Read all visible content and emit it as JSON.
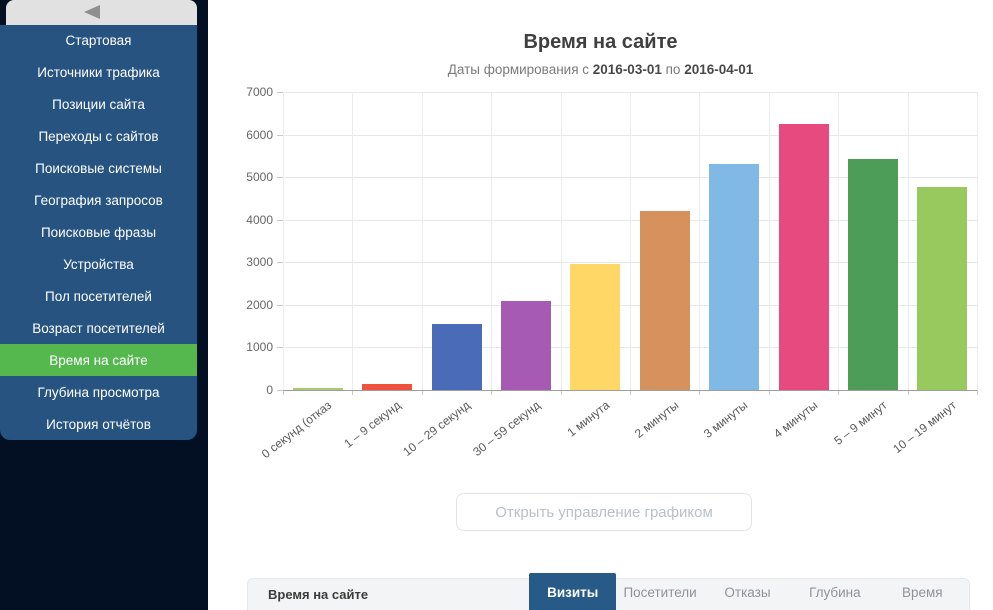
{
  "sidebar": {
    "collapse_icon": "left-triangle",
    "items": [
      {
        "label": "Стартовая",
        "active": false
      },
      {
        "label": "Источники трафика",
        "active": false
      },
      {
        "label": "Позиции сайта",
        "active": false
      },
      {
        "label": "Переходы с сайтов",
        "active": false
      },
      {
        "label": "Поисковые системы",
        "active": false
      },
      {
        "label": "География запросов",
        "active": false
      },
      {
        "label": "Поисковые фразы",
        "active": false
      },
      {
        "label": "Устройства",
        "active": false
      },
      {
        "label": "Пол посетителей",
        "active": false
      },
      {
        "label": "Возраст посетителей",
        "active": false
      },
      {
        "label": "Время на сайте",
        "active": true
      },
      {
        "label": "Глубина просмотра",
        "active": false
      },
      {
        "label": "История отчётов",
        "active": false
      }
    ],
    "colors": {
      "rail": "#031024",
      "panel": "#265380",
      "active_item": "#55b84f",
      "text": "#ffffff",
      "header": "#e1e1e1"
    }
  },
  "header": {
    "title": "Время на сайте",
    "subtitle_prefix": "Даты формирования с",
    "date_from": "2016-03-01",
    "subtitle_joiner": "по",
    "date_to": "2016-04-01"
  },
  "chart_data": {
    "type": "bar",
    "title": "Время на сайте",
    "categories": [
      "0 секунд (отказ",
      "1 – 9 секунд",
      "10 – 29 секунд",
      "30 – 59 секунд",
      "1 минута",
      "2 минуты",
      "3 минуты",
      "4 минуты",
      "5 – 9 минут",
      "10 – 19 минут"
    ],
    "values": [
      40,
      130,
      1550,
      2100,
      2950,
      4200,
      5300,
      6250,
      5430,
      4760
    ],
    "colors": [
      "#a8cb6d",
      "#f0513c",
      "#4a6cb8",
      "#a65ab3",
      "#fed766",
      "#d6915c",
      "#80b9e6",
      "#e64a7e",
      "#4d9d58",
      "#97c95f"
    ],
    "xlabel": "",
    "ylabel": "",
    "ylim": [
      0,
      7000
    ],
    "ytick_step": 1000,
    "grid": true,
    "legend": "none"
  },
  "controls": {
    "open_chart_button": "Открыть управление графиком"
  },
  "bottom_bar": {
    "label": "Время на сайте",
    "active_tab_color": "#275a87",
    "tabs": [
      {
        "label": "Визиты",
        "active": true
      },
      {
        "label": "Посетители",
        "active": false
      },
      {
        "label": "Отказы",
        "active": false
      },
      {
        "label": "Глубина",
        "active": false
      },
      {
        "label": "Время",
        "active": false
      }
    ]
  }
}
